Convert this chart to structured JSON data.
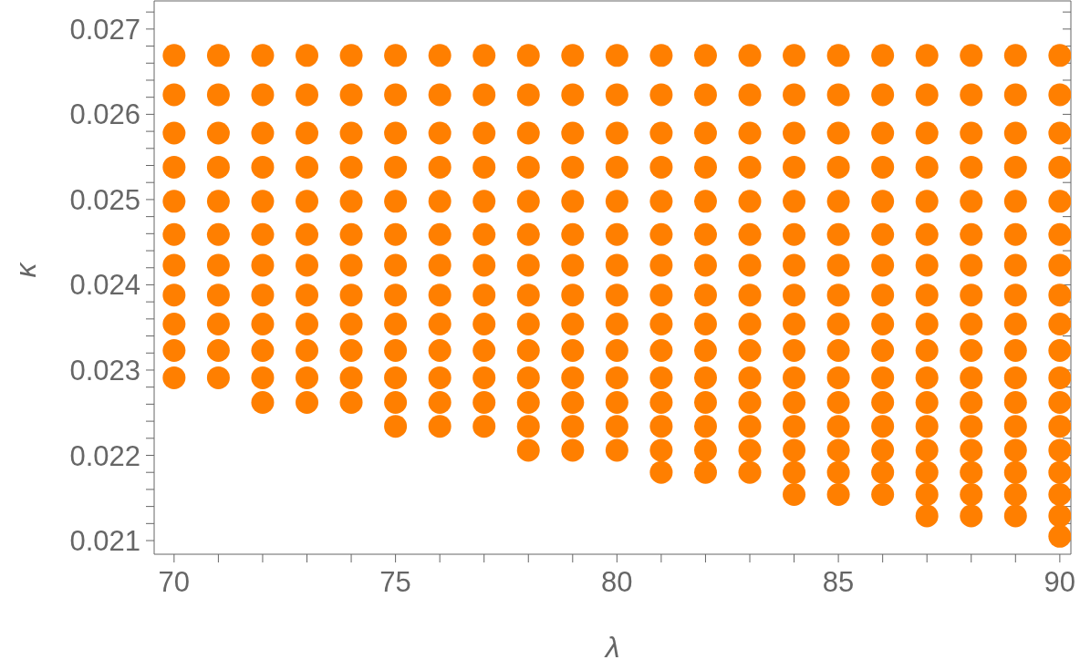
{
  "chart_data": {
    "type": "scatter",
    "xlabel": "λ",
    "ylabel": "κ",
    "xlim": [
      69.55,
      90.25
    ],
    "ylim": [
      0.02084,
      0.02733
    ],
    "xticks": [
      70,
      {
        "value": 71,
        "label": null
      },
      {
        "value": 72,
        "label": null
      },
      {
        "value": 73,
        "label": null
      },
      {
        "value": 74,
        "label": null
      },
      75,
      {
        "value": 76,
        "label": null
      },
      {
        "value": 77,
        "label": null
      },
      {
        "value": 78,
        "label": null
      },
      {
        "value": 79,
        "label": null
      },
      80,
      {
        "value": 81,
        "label": null
      },
      {
        "value": 82,
        "label": null
      },
      {
        "value": 83,
        "label": null
      },
      {
        "value": 84,
        "label": null
      },
      85,
      {
        "value": 86,
        "label": null
      },
      {
        "value": 87,
        "label": null
      },
      {
        "value": 88,
        "label": null
      },
      {
        "value": 89,
        "label": null
      },
      90
    ],
    "yticks": [
      0.021,
      {
        "value": 0.0212,
        "label": null
      },
      {
        "value": 0.0214,
        "label": null
      },
      {
        "value": 0.0216,
        "label": null
      },
      {
        "value": 0.0218,
        "label": null
      },
      0.022,
      {
        "value": 0.0222,
        "label": null
      },
      {
        "value": 0.0224,
        "label": null
      },
      {
        "value": 0.0226,
        "label": null
      },
      {
        "value": 0.0228,
        "label": null
      },
      0.023,
      {
        "value": 0.0232,
        "label": null
      },
      {
        "value": 0.0234,
        "label": null
      },
      {
        "value": 0.0236,
        "label": null
      },
      {
        "value": 0.0238,
        "label": null
      },
      0.024,
      {
        "value": 0.0242,
        "label": null
      },
      {
        "value": 0.0244,
        "label": null
      },
      {
        "value": 0.0246,
        "label": null
      },
      {
        "value": 0.0248,
        "label": null
      },
      0.025,
      {
        "value": 0.0252,
        "label": null
      },
      {
        "value": 0.0254,
        "label": null
      },
      {
        "value": 0.0256,
        "label": null
      },
      {
        "value": 0.0258,
        "label": null
      },
      0.026,
      {
        "value": 0.0262,
        "label": null
      },
      {
        "value": 0.0264,
        "label": null
      },
      {
        "value": 0.0266,
        "label": null
      },
      {
        "value": 0.0268,
        "label": null
      },
      0.027,
      {
        "value": 0.0272,
        "label": null
      }
    ],
    "grid": false,
    "legend": false,
    "marker": "circle",
    "series": [
      {
        "color": "#ff7f00",
        "x": [
          70,
          70,
          70,
          70,
          70,
          70,
          70,
          70,
          70,
          70,
          70,
          71,
          71,
          71,
          71,
          71,
          71,
          71,
          71,
          71,
          71,
          71,
          72,
          72,
          72,
          72,
          72,
          72,
          72,
          72,
          72,
          72,
          72,
          72,
          73,
          73,
          73,
          73,
          73,
          73,
          73,
          73,
          73,
          73,
          73,
          73,
          74,
          74,
          74,
          74,
          74,
          74,
          74,
          74,
          74,
          74,
          74,
          74,
          75,
          75,
          75,
          75,
          75,
          75,
          75,
          75,
          75,
          75,
          75,
          75,
          75,
          76,
          76,
          76,
          76,
          76,
          76,
          76,
          76,
          76,
          76,
          76,
          76,
          76,
          77,
          77,
          77,
          77,
          77,
          77,
          77,
          77,
          77,
          77,
          77,
          77,
          77,
          78,
          78,
          78,
          78,
          78,
          78,
          78,
          78,
          78,
          78,
          78,
          78,
          78,
          78,
          79,
          79,
          79,
          79,
          79,
          79,
          79,
          79,
          79,
          79,
          79,
          79,
          79,
          79,
          80,
          80,
          80,
          80,
          80,
          80,
          80,
          80,
          80,
          80,
          80,
          80,
          80,
          80,
          81,
          81,
          81,
          81,
          81,
          81,
          81,
          81,
          81,
          81,
          81,
          81,
          81,
          81,
          81,
          82,
          82,
          82,
          82,
          82,
          82,
          82,
          82,
          82,
          82,
          82,
          82,
          82,
          82,
          82,
          83,
          83,
          83,
          83,
          83,
          83,
          83,
          83,
          83,
          83,
          83,
          83,
          83,
          83,
          83,
          84,
          84,
          84,
          84,
          84,
          84,
          84,
          84,
          84,
          84,
          84,
          84,
          84,
          84,
          84,
          84,
          85,
          85,
          85,
          85,
          85,
          85,
          85,
          85,
          85,
          85,
          85,
          85,
          85,
          85,
          85,
          85,
          86,
          86,
          86,
          86,
          86,
          86,
          86,
          86,
          86,
          86,
          86,
          86,
          86,
          86,
          86,
          86,
          87,
          87,
          87,
          87,
          87,
          87,
          87,
          87,
          87,
          87,
          87,
          87,
          87,
          87,
          87,
          87,
          87,
          88,
          88,
          88,
          88,
          88,
          88,
          88,
          88,
          88,
          88,
          88,
          88,
          88,
          88,
          88,
          88,
          88,
          89,
          89,
          89,
          89,
          89,
          89,
          89,
          89,
          89,
          89,
          89,
          89,
          89,
          89,
          89,
          89,
          89,
          90,
          90,
          90,
          90,
          90,
          90,
          90,
          90,
          90,
          90,
          90,
          90,
          90,
          90,
          90,
          90,
          90,
          90
        ],
        "values": [
          0.02669,
          0.02623,
          0.02578,
          0.02538,
          0.02498,
          0.02459,
          0.02423,
          0.02388,
          0.02354,
          0.02323,
          0.02291,
          0.02669,
          0.02623,
          0.02578,
          0.02538,
          0.02498,
          0.02459,
          0.02423,
          0.02388,
          0.02354,
          0.02323,
          0.02291,
          0.02669,
          0.02623,
          0.02578,
          0.02538,
          0.02498,
          0.02459,
          0.02423,
          0.02388,
          0.02354,
          0.02323,
          0.02291,
          0.02262,
          0.02669,
          0.02623,
          0.02578,
          0.02538,
          0.02498,
          0.02459,
          0.02423,
          0.02388,
          0.02354,
          0.02323,
          0.02291,
          0.02262,
          0.02669,
          0.02623,
          0.02578,
          0.02538,
          0.02498,
          0.02459,
          0.02423,
          0.02388,
          0.02354,
          0.02323,
          0.02291,
          0.02262,
          0.02669,
          0.02623,
          0.02578,
          0.02538,
          0.02498,
          0.02459,
          0.02423,
          0.02388,
          0.02354,
          0.02323,
          0.02291,
          0.02262,
          0.02234,
          0.02669,
          0.02623,
          0.02578,
          0.02538,
          0.02498,
          0.02459,
          0.02423,
          0.02388,
          0.02354,
          0.02323,
          0.02291,
          0.02262,
          0.02234,
          0.02669,
          0.02623,
          0.02578,
          0.02538,
          0.02498,
          0.02459,
          0.02423,
          0.02388,
          0.02354,
          0.02323,
          0.02291,
          0.02262,
          0.02234,
          0.02669,
          0.02623,
          0.02578,
          0.02538,
          0.02498,
          0.02459,
          0.02423,
          0.02388,
          0.02354,
          0.02323,
          0.02291,
          0.02262,
          0.02234,
          0.02206,
          0.02669,
          0.02623,
          0.02578,
          0.02538,
          0.02498,
          0.02459,
          0.02423,
          0.02388,
          0.02354,
          0.02323,
          0.02291,
          0.02262,
          0.02234,
          0.02206,
          0.02669,
          0.02623,
          0.02578,
          0.02538,
          0.02498,
          0.02459,
          0.02423,
          0.02388,
          0.02354,
          0.02323,
          0.02291,
          0.02262,
          0.02234,
          0.02206,
          0.02669,
          0.02623,
          0.02578,
          0.02538,
          0.02498,
          0.02459,
          0.02423,
          0.02388,
          0.02354,
          0.02323,
          0.02291,
          0.02262,
          0.02234,
          0.02206,
          0.0218,
          0.02669,
          0.02623,
          0.02578,
          0.02538,
          0.02498,
          0.02459,
          0.02423,
          0.02388,
          0.02354,
          0.02323,
          0.02291,
          0.02262,
          0.02234,
          0.02206,
          0.0218,
          0.02669,
          0.02623,
          0.02578,
          0.02538,
          0.02498,
          0.02459,
          0.02423,
          0.02388,
          0.02354,
          0.02323,
          0.02291,
          0.02262,
          0.02234,
          0.02206,
          0.0218,
          0.02669,
          0.02623,
          0.02578,
          0.02538,
          0.02498,
          0.02459,
          0.02423,
          0.02388,
          0.02354,
          0.02323,
          0.02291,
          0.02262,
          0.02234,
          0.02206,
          0.0218,
          0.02154,
          0.02669,
          0.02623,
          0.02578,
          0.02538,
          0.02498,
          0.02459,
          0.02423,
          0.02388,
          0.02354,
          0.02323,
          0.02291,
          0.02262,
          0.02234,
          0.02206,
          0.0218,
          0.02154,
          0.02669,
          0.02623,
          0.02578,
          0.02538,
          0.02498,
          0.02459,
          0.02423,
          0.02388,
          0.02354,
          0.02323,
          0.02291,
          0.02262,
          0.02234,
          0.02206,
          0.0218,
          0.02154,
          0.02669,
          0.02623,
          0.02578,
          0.02538,
          0.02498,
          0.02459,
          0.02423,
          0.02388,
          0.02354,
          0.02323,
          0.02291,
          0.02262,
          0.02234,
          0.02206,
          0.0218,
          0.02154,
          0.02129,
          0.02669,
          0.02623,
          0.02578,
          0.02538,
          0.02498,
          0.02459,
          0.02423,
          0.02388,
          0.02354,
          0.02323,
          0.02291,
          0.02262,
          0.02234,
          0.02206,
          0.0218,
          0.02154,
          0.02129,
          0.02669,
          0.02623,
          0.02578,
          0.02538,
          0.02498,
          0.02459,
          0.02423,
          0.02388,
          0.02354,
          0.02323,
          0.02291,
          0.02262,
          0.02234,
          0.02206,
          0.0218,
          0.02154,
          0.02129,
          0.02669,
          0.02623,
          0.02578,
          0.02538,
          0.02498,
          0.02459,
          0.02423,
          0.02388,
          0.02354,
          0.02323,
          0.02291,
          0.02262,
          0.02234,
          0.02206,
          0.0218,
          0.02154,
          0.02129,
          0.02105
        ]
      }
    ]
  }
}
